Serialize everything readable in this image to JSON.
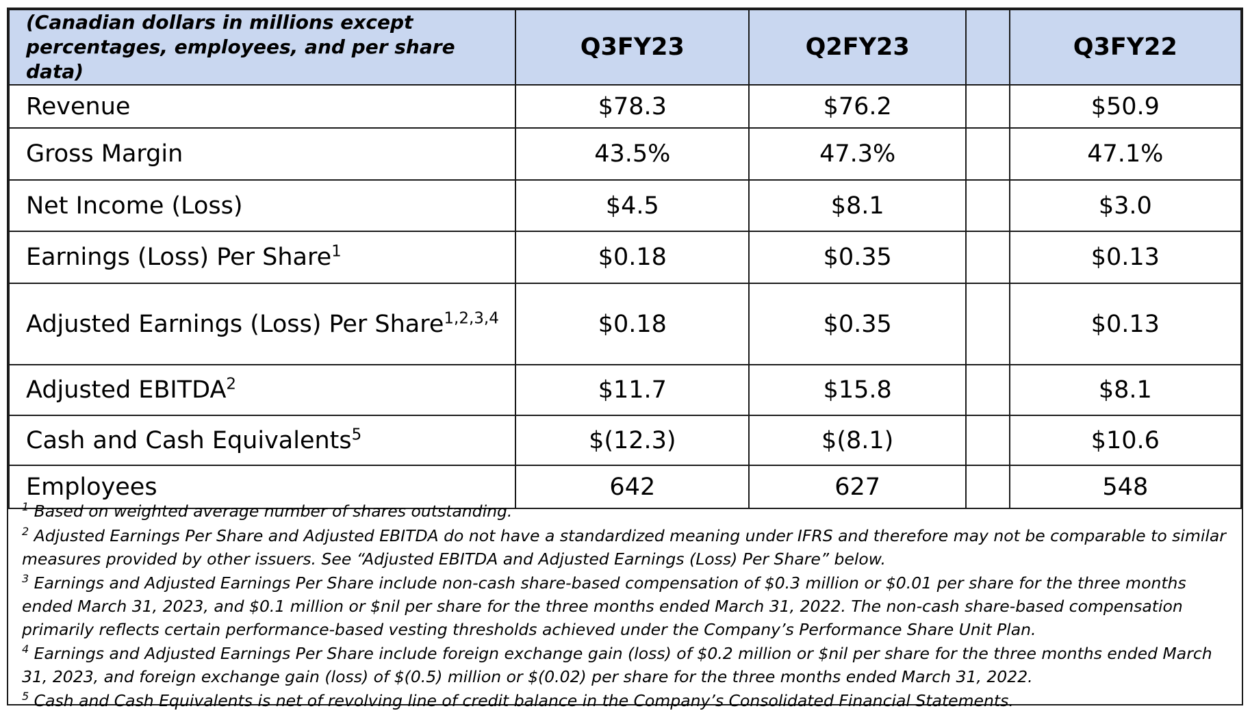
{
  "header": {
    "corner_line1": "(Canadian dollars in millions except",
    "corner_line2": "percentages, employees, and per share data)",
    "col_q3fy23": "Q3FY23",
    "col_q2fy23": "Q2FY23",
    "col_q3fy22": "Q3FY22"
  },
  "rows": [
    {
      "label": "Revenue",
      "sup": "",
      "q3fy23": "$78.3",
      "q2fy23": "$76.2",
      "q3fy22": "$50.9"
    },
    {
      "label": "Gross Margin",
      "sup": "",
      "q3fy23": "43.5%",
      "q2fy23": "47.3%",
      "q3fy22": "47.1%"
    },
    {
      "label": "Net Income (Loss)",
      "sup": "",
      "q3fy23": "$4.5",
      "q2fy23": "$8.1",
      "q3fy22": "$3.0"
    },
    {
      "label": "Earnings (Loss) Per Share",
      "sup": "1",
      "q3fy23": "$0.18",
      "q2fy23": "$0.35",
      "q3fy22": "$0.13"
    },
    {
      "label": "Adjusted Earnings (Loss) Per Share",
      "sup": "1,2,3,4",
      "q3fy23": "$0.18",
      "q2fy23": "$0.35",
      "q3fy22": "$0.13"
    },
    {
      "label": "Adjusted EBITDA",
      "sup": "2",
      "q3fy23": "$11.7",
      "q2fy23": "$15.8",
      "q3fy22": "$8.1"
    },
    {
      "label": "Cash and Cash Equivalents",
      "sup": "5",
      "q3fy23": "$(12.3)",
      "q2fy23": "$(8.1)",
      "q3fy22": "$10.6"
    },
    {
      "label": "Employees",
      "sup": "",
      "q3fy23": "642",
      "q2fy23": "627",
      "q3fy22": "548"
    }
  ],
  "footnotes": [
    {
      "num": "1",
      "line1": " Based on weighted average number of shares outstanding.",
      "line2": "",
      "line3": ""
    },
    {
      "num": "2",
      "line1": " Adjusted Earnings Per Share and Adjusted EBITDA do not have a standardized meaning under IFRS and therefore may not be comparable to similar",
      "line2": "measures provided by other issuers. See “Adjusted EBITDA and Adjusted Earnings (Loss) Per Share” below.",
      "line3": ""
    },
    {
      "num": "3",
      "line1": " Earnings and Adjusted Earnings Per Share include non-cash share-based compensation of $0.3 million or $0.01 per share for the three months",
      "line2": "ended March 31, 2023, and $0.1 million or $nil per share for the three months ended March 31, 2022. The non-cash share-based compensation",
      "line3": "primarily reflects certain performance-based vesting thresholds achieved under the Company’s Performance Share Unit Plan."
    },
    {
      "num": "4",
      "line1": " Earnings and Adjusted Earnings Per Share include foreign exchange gain (loss) of $0.2 million or $nil per share for the three months ended March",
      "line2": "31, 2023, and foreign exchange gain (loss) of $(0.5) million or $(0.02) per share for the three months ended March 31, 2022.",
      "line3": ""
    },
    {
      "num": "5",
      "line1": " Cash and Cash Equivalents is net of revolving line of credit balance in the Company’s Consolidated Financial Statements.",
      "line2": "",
      "line3": ""
    }
  ]
}
